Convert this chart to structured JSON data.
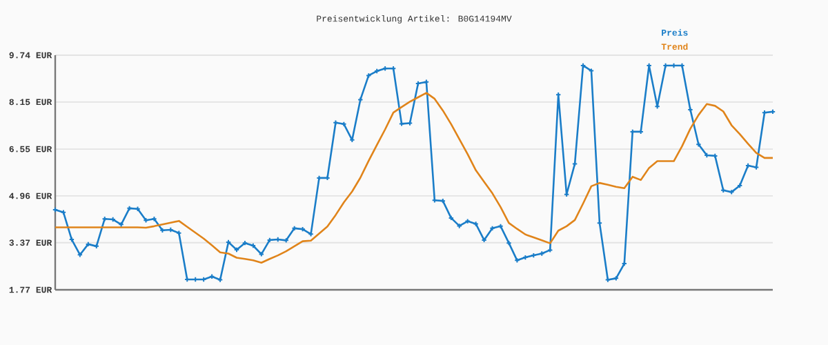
{
  "chart_data": {
    "type": "line",
    "title": "Preisentwicklung Artikel: B0G14194MV",
    "categories": [
      null,
      null,
      null,
      null,
      null,
      null,
      null,
      null,
      null,
      null,
      null,
      null,
      null,
      null,
      null,
      null,
      null,
      null,
      null,
      null,
      null,
      null,
      null,
      null,
      null,
      null,
      null,
      null,
      null,
      null,
      null,
      null,
      null,
      null,
      null,
      null,
      null,
      null,
      null,
      null,
      null,
      null,
      null,
      null,
      null,
      null,
      null,
      null,
      null,
      null,
      null,
      null,
      null,
      null,
      null,
      null,
      null,
      null,
      null,
      null,
      null,
      null,
      null,
      null,
      null,
      null,
      null,
      null,
      null,
      null,
      null,
      null,
      null,
      null,
      null,
      null,
      null,
      null,
      null,
      null,
      null,
      null,
      null,
      null,
      null,
      null,
      null,
      null
    ],
    "series": [
      {
        "name": "Preis",
        "color": "#1a7dc8",
        "marker": "cross",
        "values": [
          4.49,
          4.4,
          3.48,
          2.96,
          3.32,
          3.25,
          4.18,
          4.16,
          3.99,
          4.54,
          4.52,
          4.13,
          4.18,
          3.79,
          3.81,
          3.7,
          2.12,
          2.12,
          2.12,
          2.22,
          2.11,
          3.39,
          3.13,
          3.36,
          3.27,
          2.98,
          3.46,
          3.48,
          3.45,
          3.86,
          3.83,
          3.66,
          5.57,
          5.57,
          7.45,
          7.4,
          6.86,
          8.23,
          9.05,
          9.2,
          9.29,
          9.29,
          7.41,
          7.43,
          8.78,
          8.83,
          4.81,
          4.79,
          4.21,
          3.94,
          4.1,
          4.01,
          3.46,
          3.86,
          3.93,
          3.36,
          2.77,
          2.87,
          2.94,
          3.0,
          3.12,
          8.4,
          5.01,
          6.05,
          9.39,
          9.21,
          4.04,
          2.11,
          2.16,
          2.66,
          7.14,
          7.14,
          9.39,
          8.0,
          9.39,
          9.39,
          9.39,
          7.89,
          6.71,
          6.34,
          6.32,
          5.15,
          5.09,
          5.31,
          5.99,
          5.93,
          7.79,
          7.82
        ]
      },
      {
        "name": "Trend",
        "color": "#e0841a",
        "marker": "none",
        "values": [
          3.89,
          3.89,
          3.89,
          3.89,
          3.89,
          3.89,
          3.89,
          3.89,
          3.89,
          3.89,
          3.89,
          3.88,
          3.93,
          3.99,
          4.05,
          4.11,
          3.91,
          3.71,
          3.51,
          3.28,
          3.04,
          3.0,
          2.86,
          2.82,
          2.77,
          2.69,
          2.82,
          2.94,
          3.08,
          3.25,
          3.42,
          3.44,
          3.68,
          3.92,
          4.31,
          4.74,
          5.11,
          5.58,
          6.15,
          6.69,
          7.22,
          7.79,
          7.98,
          8.16,
          8.31,
          8.46,
          8.26,
          7.86,
          7.4,
          6.89,
          6.38,
          5.83,
          5.44,
          5.05,
          4.58,
          4.04,
          3.84,
          3.65,
          3.55,
          3.45,
          3.35,
          3.78,
          3.93,
          4.14,
          4.7,
          5.29,
          5.4,
          5.34,
          5.27,
          5.22,
          5.61,
          5.5,
          5.91,
          6.14,
          6.14,
          6.14,
          6.65,
          7.24,
          7.71,
          8.08,
          8.02,
          7.83,
          7.36,
          7.06,
          6.73,
          6.42,
          6.25,
          6.25
        ]
      }
    ],
    "ylim": [
      1.77,
      9.74
    ],
    "yticks": [
      {
        "value": 1.77,
        "label": "1.77 EUR"
      },
      {
        "value": 3.37,
        "label": "3.37 EUR"
      },
      {
        "value": 4.96,
        "label": "4.96 EUR"
      },
      {
        "value": 6.55,
        "label": "6.55 EUR"
      },
      {
        "value": 8.15,
        "label": "8.15 EUR"
      },
      {
        "value": 9.74,
        "label": "9.74 EUR"
      }
    ],
    "grid": "y",
    "legend": "top right",
    "tick_labels": "y",
    "line_style": "solid"
  }
}
